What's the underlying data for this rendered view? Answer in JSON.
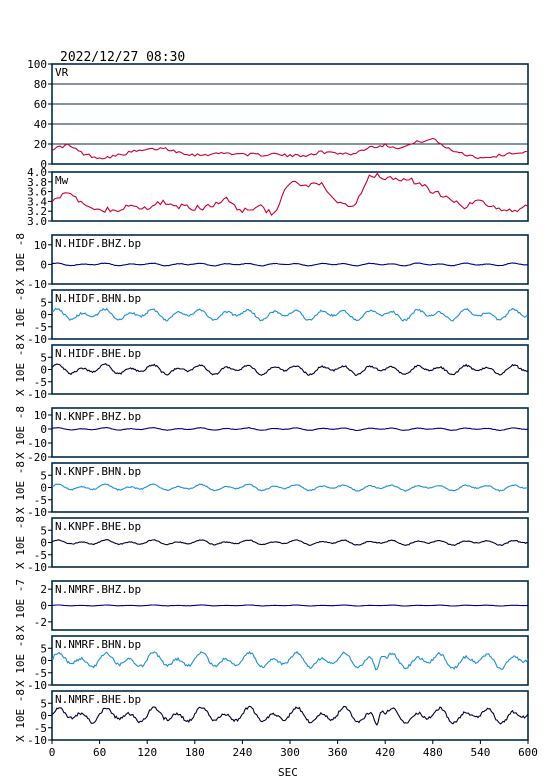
{
  "header": {
    "timestamp": "2022/12/27 08:30"
  },
  "chart_data": [
    {
      "type": "line",
      "label": "VR",
      "ylim": [
        0,
        100
      ],
      "yticks": [
        "100",
        "80",
        "60",
        "40",
        "20",
        "0"
      ],
      "color": "#cc0033",
      "grid": true,
      "x": [
        0,
        20,
        40,
        60,
        80,
        100,
        120,
        140,
        160,
        180,
        200,
        220,
        240,
        260,
        280,
        300,
        320,
        340,
        360,
        380,
        400,
        420,
        440,
        460,
        480,
        500,
        520,
        540,
        560,
        580,
        600
      ],
      "values": [
        15,
        19,
        10,
        6,
        8,
        12,
        14,
        16,
        12,
        9,
        10,
        11,
        10,
        9,
        10,
        8,
        9,
        12,
        11,
        10,
        17,
        19,
        16,
        22,
        25,
        15,
        10,
        6,
        8,
        11,
        12
      ]
    },
    {
      "type": "line",
      "label": "Mw",
      "ylim": [
        3.0,
        4.0
      ],
      "yticks": [
        "4.0",
        "3.8",
        "3.6",
        "3.4",
        "3.2",
        "3.0"
      ],
      "color": "#cc0033",
      "grid": false,
      "x": [
        0,
        20,
        40,
        60,
        80,
        100,
        120,
        140,
        160,
        180,
        200,
        220,
        240,
        260,
        280,
        300,
        320,
        340,
        360,
        380,
        400,
        420,
        440,
        460,
        480,
        500,
        520,
        540,
        560,
        580,
        600
      ],
      "values": [
        3.45,
        3.6,
        3.3,
        3.25,
        3.2,
        3.3,
        3.25,
        3.4,
        3.3,
        3.25,
        3.3,
        3.45,
        3.2,
        3.3,
        3.15,
        3.8,
        3.7,
        3.75,
        3.35,
        3.25,
        3.95,
        3.9,
        3.85,
        3.8,
        3.6,
        3.5,
        3.3,
        3.4,
        3.25,
        3.2,
        3.3
      ]
    },
    {
      "type": "line",
      "label": "N.HIDF.BHZ.bp",
      "unit": "X 10E -8",
      "ylim": [
        -10,
        15
      ],
      "yticks": [
        "10",
        "0",
        "-10"
      ],
      "color": "#00008b",
      "amp": 0.6,
      "peak_sec": null
    },
    {
      "type": "line",
      "label": "N.HIDF.BHN.bp",
      "unit": "X 10E -8",
      "ylim": [
        -10,
        10
      ],
      "yticks": [
        "5",
        "0",
        "-5",
        "-10"
      ],
      "color": "#1e90d8",
      "amp": 2.0,
      "peak_sec": null
    },
    {
      "type": "line",
      "label": "N.HIDF.BHE.bp",
      "unit": "X 10E -8",
      "ylim": [
        -10,
        10
      ],
      "yticks": [
        "5",
        "0",
        "-5",
        "-10"
      ],
      "color": "#000033",
      "amp": 1.8,
      "peak_sec": null
    },
    {
      "type": "line",
      "label": "N.KNPF.BHZ.bp",
      "unit": "X 10E -8",
      "ylim": [
        -20,
        15
      ],
      "yticks": [
        "10",
        "0",
        "-10",
        "-20"
      ],
      "color": "#00008b",
      "amp": 0.8,
      "peak_sec": null
    },
    {
      "type": "line",
      "label": "N.KNPF.BHN.bp",
      "unit": "X 10E -8",
      "ylim": [
        -10,
        10
      ],
      "yticks": [
        "5",
        "0",
        "-5",
        "-10"
      ],
      "color": "#1e90d8",
      "amp": 1.1,
      "peak_sec": null
    },
    {
      "type": "line",
      "label": "N.KNPF.BHE.bp",
      "unit": "X 10E -8",
      "ylim": [
        -10,
        10
      ],
      "yticks": [
        "5",
        "0",
        "-5",
        "-10"
      ],
      "color": "#000033",
      "amp": 0.9,
      "peak_sec": null
    },
    {
      "type": "line",
      "label": "N.NMRF.BHZ.bp",
      "unit": "X 10E -7",
      "ylim": [
        -3,
        3
      ],
      "yticks": [
        "2",
        "0",
        "-2"
      ],
      "color": "#00008b",
      "amp": 0.05,
      "peak_sec": null
    },
    {
      "type": "line",
      "label": "N.NMRF.BHN.bp",
      "unit": "X 10E -8",
      "ylim": [
        -10,
        10
      ],
      "yticks": [
        "5",
        "0",
        "-5",
        "-10"
      ],
      "color": "#1e90d8",
      "amp": 2.8,
      "peak_sec": 412
    },
    {
      "type": "line",
      "label": "N.NMRF.BHE.bp",
      "unit": "X 10E -8",
      "ylim": [
        -10,
        10
      ],
      "yticks": [
        "5",
        "0",
        "-5",
        "-10"
      ],
      "color": "#000033",
      "amp": 2.8,
      "peak_sec": 412
    }
  ],
  "x_axis": {
    "label": "SEC",
    "ticks": [
      "0",
      "60",
      "120",
      "180",
      "240",
      "300",
      "360",
      "420",
      "480",
      "540",
      "600"
    ],
    "range": [
      0,
      600
    ]
  }
}
